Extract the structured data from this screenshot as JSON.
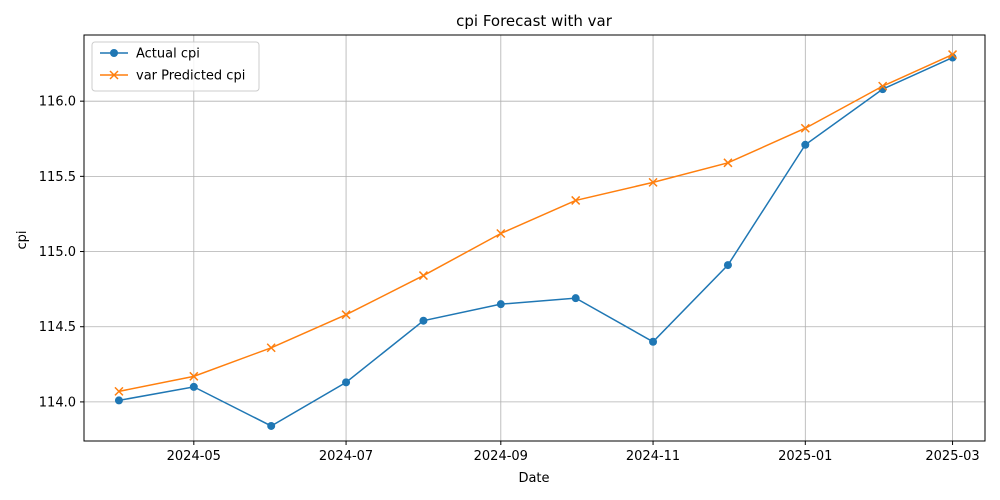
{
  "chart_data": {
    "type": "line",
    "title": "cpi Forecast with var",
    "xlabel": "Date",
    "ylabel": "cpi",
    "x": [
      "2024-04-01",
      "2024-05-01",
      "2024-06-01",
      "2024-07-01",
      "2024-08-01",
      "2024-09-01",
      "2024-10-01",
      "2024-11-01",
      "2024-12-01",
      "2025-01-01",
      "2025-02-01",
      "2025-03-01"
    ],
    "x_ticks": [
      "2024-05",
      "2024-07",
      "2024-09",
      "2024-11",
      "2025-01",
      "2025-03"
    ],
    "y_ticks": [
      "114.0",
      "114.5",
      "115.0",
      "115.5",
      "116.0"
    ],
    "ylim": [
      113.74,
      116.44
    ],
    "xlim": [
      "2024-03-18",
      "2025-03-14"
    ],
    "grid": true,
    "legend_position": "upper-left",
    "series": [
      {
        "name": "Actual cpi",
        "color": "#1f77b4",
        "marker": "circle",
        "values": [
          114.01,
          114.1,
          113.84,
          114.13,
          114.54,
          114.65,
          114.69,
          114.4,
          114.91,
          115.71,
          116.08,
          116.29
        ]
      },
      {
        "name": "var Predicted cpi",
        "color": "#ff7f0e",
        "marker": "x",
        "values": [
          114.07,
          114.17,
          114.36,
          114.58,
          114.84,
          115.12,
          115.34,
          115.46,
          115.59,
          115.82,
          116.1,
          116.31
        ]
      }
    ]
  }
}
